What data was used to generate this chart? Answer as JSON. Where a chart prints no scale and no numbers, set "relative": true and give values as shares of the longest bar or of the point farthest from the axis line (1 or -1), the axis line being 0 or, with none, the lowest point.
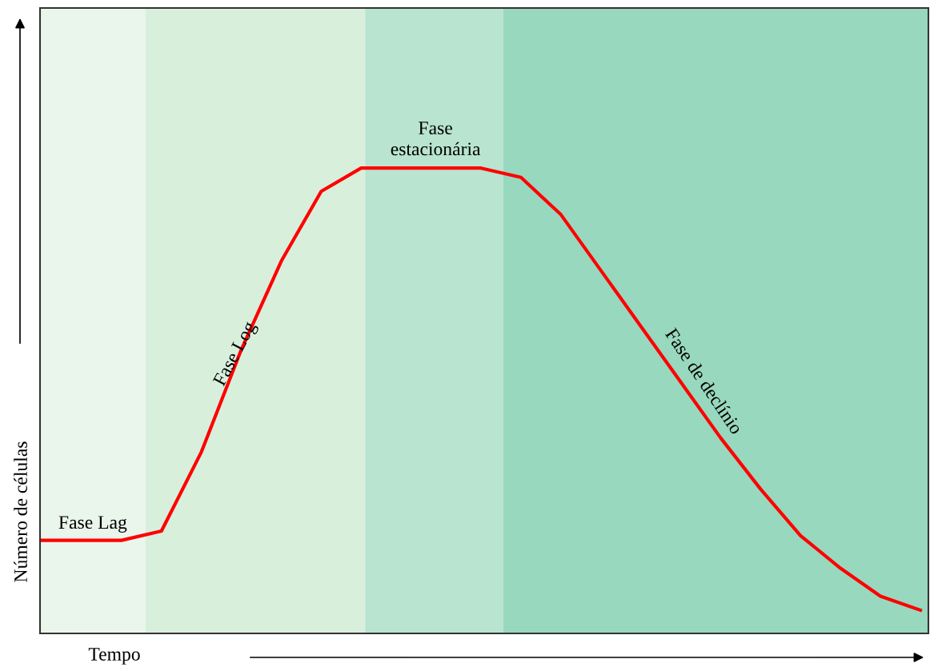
{
  "chart_data": {
    "type": "line",
    "relative": true,
    "xlabel": "Tempo",
    "ylabel": "Número de células",
    "categories": [
      null,
      null,
      null,
      null,
      null,
      null,
      null,
      null,
      null,
      null,
      null,
      null,
      null,
      null,
      null,
      null,
      null,
      null,
      null,
      null,
      null,
      null,
      null
    ],
    "series": [
      {
        "color": "#ff0000",
        "values": [
          0.2,
          0.2,
          0.2,
          0.22,
          0.39,
          0.61,
          0.8,
          0.95,
          1,
          1,
          1,
          1,
          0.98,
          0.9,
          0.78,
          0.66,
          0.54,
          0.42,
          0.31,
          0.21,
          0.14,
          0.08,
          0.05
        ]
      }
    ],
    "annotations": [
      "Fase Lag",
      "Fase Log",
      "Fase\nestacionária",
      "Fase de declínio"
    ]
  }
}
